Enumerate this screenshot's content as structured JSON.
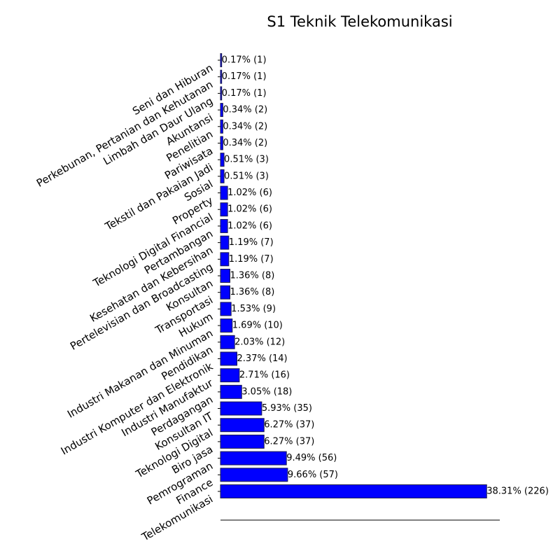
{
  "chart_data": {
    "type": "barh",
    "title": "S1 Teknik Telekomunikasi",
    "categories": [
      "Seni dan Hiburan",
      "Perkebunan, Pertanian dan Kehutanan",
      "Limbah dan Daur Ulang",
      "Akuntansi",
      "Penelitian",
      "Pariwisata",
      "Tekstil dan Pakaian Jadi",
      "Sosial",
      "Property",
      "Teknologi Digital Financial",
      "Pertambangan",
      "Kesehatan dan Kebersihan",
      "Pertelevisian dan Broadcasting",
      "Konsultan",
      "Transportasi",
      "Hukum",
      "Industri Makanan dan Minuman",
      "Pendidikan",
      "Industri Komputer dan Elektronik",
      "Industri Manufaktur",
      "Perdagangan",
      "Konsultan IT",
      "Teknologi Digital",
      "Biro jasa",
      "Pemrograman",
      "Finance",
      "Telekomunikasi"
    ],
    "values": [
      0.17,
      0.17,
      0.17,
      0.34,
      0.34,
      0.34,
      0.51,
      0.51,
      1.02,
      1.02,
      1.02,
      1.19,
      1.19,
      1.36,
      1.36,
      1.53,
      1.69,
      2.03,
      2.37,
      2.71,
      3.05,
      5.93,
      6.27,
      6.27,
      9.49,
      9.66,
      38.31
    ],
    "value_labels": [
      "0.17% (1)",
      "0.17% (1)",
      "0.17% (1)",
      "0.34% (2)",
      "0.34% (2)",
      "0.34% (2)",
      "0.51% (3)",
      "0.51% (3)",
      "1.02% (6)",
      "1.02% (6)",
      "1.02% (6)",
      "1.19% (7)",
      "1.19% (7)",
      "1.36% (8)",
      "1.36% (8)",
      "1.53% (9)",
      "1.69% (10)",
      "2.03% (12)",
      "2.37% (14)",
      "2.71% (16)",
      "3.05% (18)",
      "5.93% (35)",
      "6.27% (37)",
      "6.27% (37)",
      "9.49% (56)",
      "9.66% (57)",
      "38.31% (226)"
    ],
    "color": "#0000ff",
    "edgecolor": "#1a1a4d",
    "xlim": [
      0,
      40.2
    ]
  }
}
